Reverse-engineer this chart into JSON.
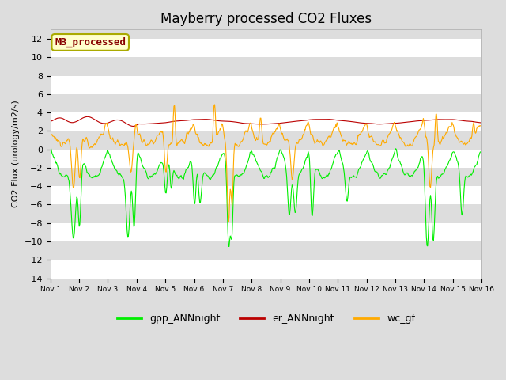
{
  "title": "Mayberry processed CO2 Fluxes",
  "ylabel": "CO2 Flux (urology/m2/s)",
  "ylim": [
    -14,
    13
  ],
  "yticks": [
    -14,
    -12,
    -10,
    -8,
    -6,
    -4,
    -2,
    0,
    2,
    4,
    6,
    8,
    10,
    12
  ],
  "n_points": 720,
  "gpp_color": "#00ee00",
  "er_color": "#bb0000",
  "wc_color": "#ffaa00",
  "legend_label_box": "MB_processed",
  "legend_box_facecolor": "#ffffcc",
  "legend_box_edgecolor": "#aaaa00",
  "legend_box_textcolor": "#880000",
  "bg_color": "#dddddd",
  "white_band_color": "#f0f0f0",
  "title_fontsize": 12,
  "axis_fontsize": 8,
  "legend_fontsize": 9,
  "line_width": 0.8
}
